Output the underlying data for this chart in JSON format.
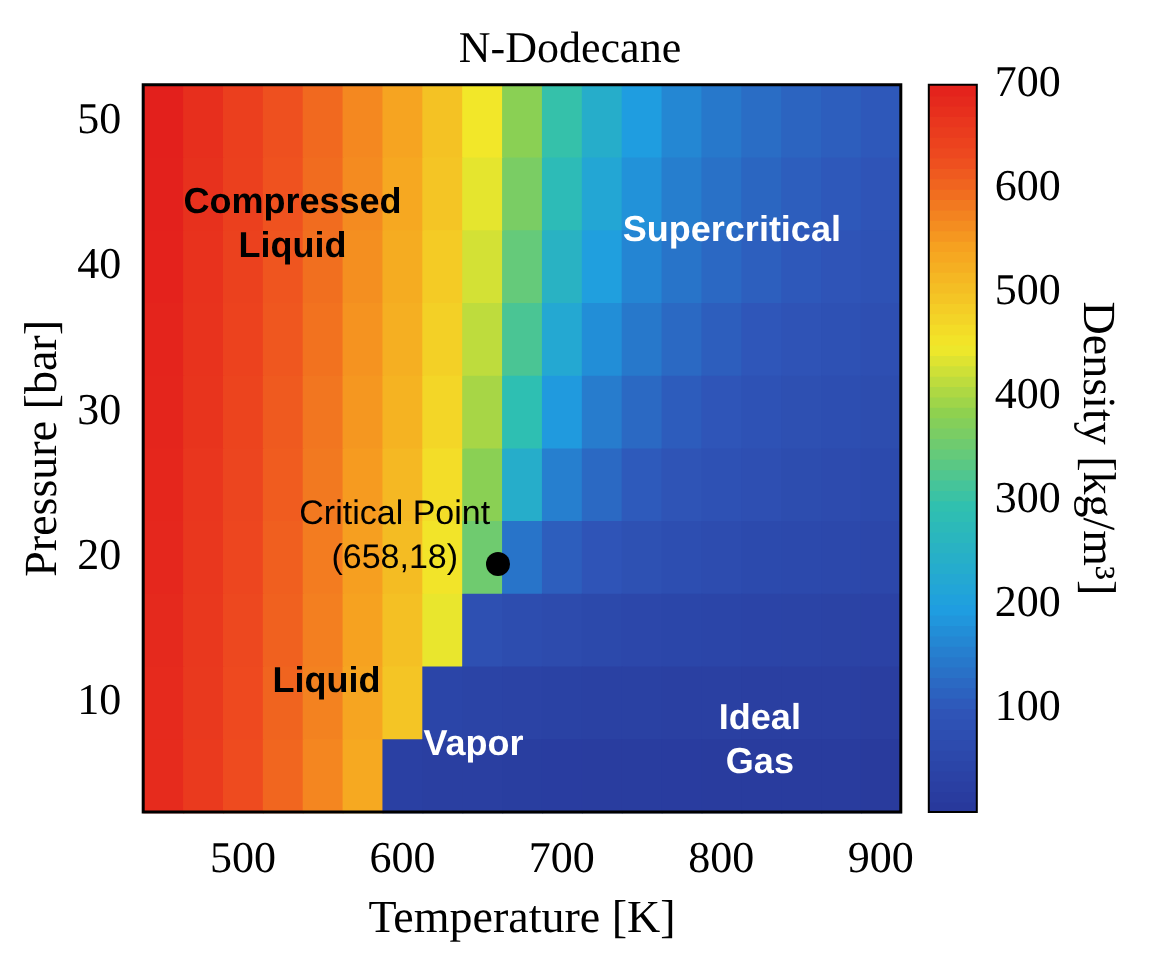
{
  "chart_data": {
    "type": "heatmap",
    "title": "N-Dodecane",
    "xlabel": "Temperature [K]",
    "ylabel": "Pressure [bar]",
    "clabel": "Density [kg/m³]",
    "categories": [
      null,
      null,
      "500",
      null,
      null,
      null,
      "600",
      null,
      null,
      null,
      "700",
      null,
      null,
      null,
      "800",
      null,
      null,
      null,
      "900"
    ],
    "y_categories": [
      "50",
      null,
      "40",
      null,
      "30",
      null,
      "20",
      null,
      "10",
      null
    ],
    "clim": [
      0,
      700
    ],
    "cticks": [
      100,
      200,
      300,
      400,
      500,
      600,
      700
    ],
    "cells": [
      [
        700,
        675,
        650,
        625,
        600,
        570,
        540,
        500,
        450,
        380,
        300,
        240,
        195,
        165,
        145,
        130,
        118,
        110,
        102
      ],
      [
        698,
        673,
        648,
        623,
        597,
        567,
        535,
        495,
        440,
        365,
        280,
        220,
        180,
        153,
        135,
        121,
        110,
        102,
        95
      ],
      [
        696,
        671,
        646,
        620,
        594,
        563,
        530,
        488,
        428,
        345,
        255,
        200,
        163,
        140,
        124,
        112,
        102,
        94,
        88
      ],
      [
        694,
        669,
        644,
        618,
        591,
        559,
        525,
        480,
        415,
        320,
        225,
        175,
        145,
        125,
        110,
        100,
        91,
        84,
        79
      ],
      [
        692,
        667,
        642,
        615,
        588,
        555,
        520,
        472,
        400,
        290,
        190,
        150,
        125,
        108,
        97,
        88,
        80,
        74,
        70
      ],
      [
        690,
        665,
        640,
        613,
        585,
        551,
        514,
        463,
        380,
        240,
        155,
        125,
        105,
        93,
        84,
        77,
        70,
        65,
        61
      ],
      [
        688,
        663,
        638,
        610,
        582,
        547,
        508,
        453,
        355,
        140,
        110,
        95,
        83,
        75,
        68,
        62,
        58,
        54,
        51
      ],
      [
        686,
        661,
        635,
        608,
        579,
        543,
        502,
        442,
        80,
        70,
        63,
        57,
        52,
        48,
        45,
        42,
        39,
        37,
        35
      ],
      [
        684,
        659,
        633,
        605,
        576,
        539,
        495,
        45,
        40,
        37,
        34,
        31,
        29,
        27,
        26,
        24,
        23,
        22,
        21
      ],
      [
        682,
        657,
        630,
        603,
        572,
        534,
        28,
        24,
        22,
        20,
        18,
        17,
        16,
        15,
        14,
        13,
        12,
        12,
        11
      ]
    ],
    "annotations": [
      "Compressed Liquid",
      "Supercritical",
      "Liquid",
      "Vapor",
      "Ideal Gas",
      "Critical Point (658,18)"
    ]
  }
}
